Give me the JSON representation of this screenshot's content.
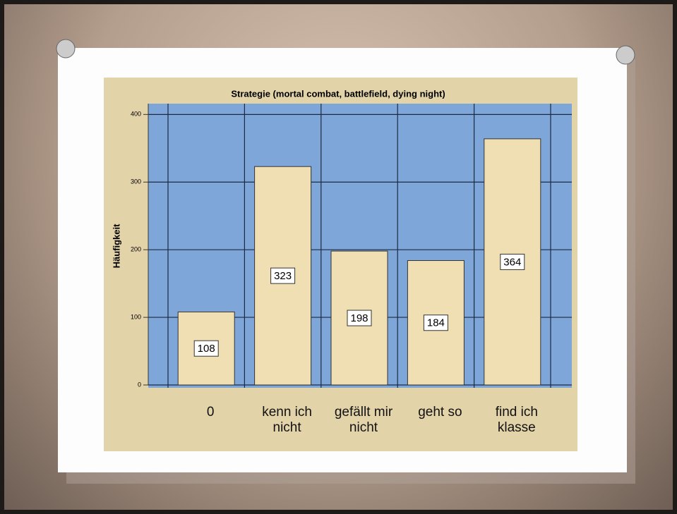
{
  "chart_data": {
    "type": "bar",
    "title": "Strategie (mortal combat, battlefield, dying night)",
    "y_label": "Häufigkeit",
    "categories": [
      "0",
      "kenn ich nicht",
      "gefällt mir nicht",
      "geht so",
      "find ich klasse"
    ],
    "values": [
      108,
      323,
      198,
      184,
      364
    ],
    "color": "#efdfb3",
    "ylim": [
      0,
      416
    ],
    "yticks": [
      0,
      100,
      200,
      300,
      400
    ],
    "grid": true
  }
}
